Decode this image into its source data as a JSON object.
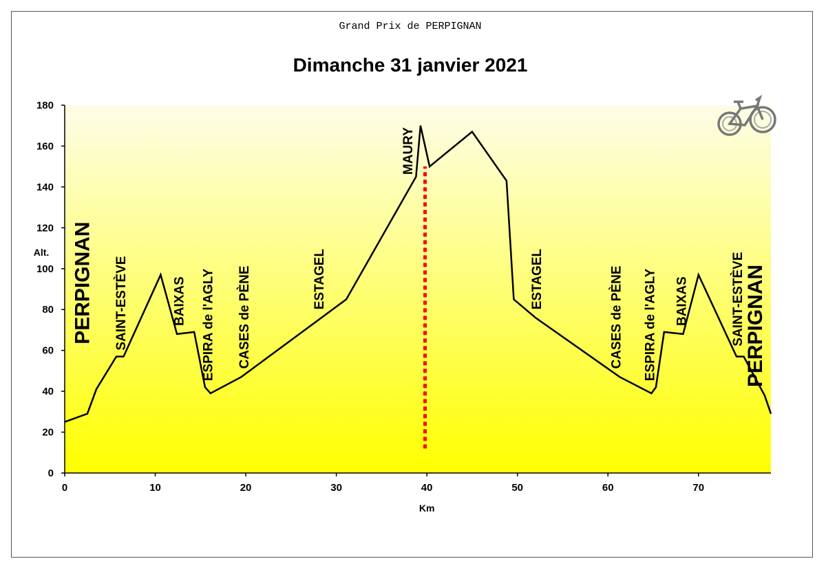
{
  "chart_data": {
    "type": "area",
    "supertitle": "Grand Prix de PERPIGNAN",
    "title": "Dimanche 31 janvier 2021",
    "xlabel": "Km",
    "ylabel": "Alt.",
    "xlim": [
      0,
      78
    ],
    "ylim": [
      0,
      180
    ],
    "x_ticks": [
      0,
      10,
      20,
      30,
      40,
      50,
      60,
      70
    ],
    "y_ticks": [
      0,
      20,
      40,
      60,
      80,
      100,
      120,
      140,
      160,
      180
    ],
    "fill_gradient": [
      "#fdfde8",
      "#ffff00"
    ],
    "line_color": "#000000",
    "marker_color": "#ff0000",
    "grid": false,
    "series": [
      {
        "x": [
          0,
          2.5,
          3.5,
          5.7,
          6.5,
          10.6,
          12.4,
          14.3,
          15.5,
          16.1,
          19.5,
          31.1,
          38.8,
          39.3,
          40.3,
          45,
          48.8,
          49.6,
          52,
          61.3,
          64.8,
          65.3,
          66.2,
          68.3,
          70,
          74.2,
          75,
          77.3,
          78
        ],
        "y": [
          25,
          29,
          41,
          57,
          57,
          97,
          68,
          69,
          42,
          39,
          47,
          85,
          145,
          170,
          150,
          167,
          143,
          85,
          76,
          47,
          39,
          42,
          69,
          68,
          97,
          57,
          57,
          38,
          29
        ]
      }
    ],
    "vertical_marker": {
      "x": 39.8,
      "y_from": 12,
      "y_to": 150
    },
    "annotations": [
      {
        "text": "PERPIGNAN",
        "x": 2.7,
        "y": 63,
        "size": "large"
      },
      {
        "text": "SAINT-ESTÈVE",
        "x": 6.7,
        "y": 60,
        "size": "normal"
      },
      {
        "text": "BAIXAS",
        "x": 13.1,
        "y": 72,
        "size": "normal"
      },
      {
        "text": "ESPIRA de l'AGLY",
        "x": 16.3,
        "y": 45,
        "size": "normal"
      },
      {
        "text": "CASES de PÈNE",
        "x": 20.3,
        "y": 51,
        "size": "normal"
      },
      {
        "text": "ESTAGEL",
        "x": 28.6,
        "y": 80,
        "size": "normal"
      },
      {
        "text": "MAURY",
        "x": 38.4,
        "y": 146,
        "size": "normal"
      },
      {
        "text": "ESTAGEL",
        "x": 52.6,
        "y": 80,
        "size": "normal"
      },
      {
        "text": "CASES de PÈNE",
        "x": 61.4,
        "y": 51,
        "size": "normal"
      },
      {
        "text": "ESPIRA de l'AGLY",
        "x": 65.1,
        "y": 45,
        "size": "normal"
      },
      {
        "text": "BAIXAS",
        "x": 68.6,
        "y": 72,
        "size": "normal"
      },
      {
        "text": "SAINT-ESTÈVE",
        "x": 74.8,
        "y": 62,
        "size": "normal"
      },
      {
        "text": "PERPIGNAN",
        "x": 77.0,
        "y": 42,
        "size": "large"
      }
    ],
    "icon": "bicycle-icon"
  }
}
